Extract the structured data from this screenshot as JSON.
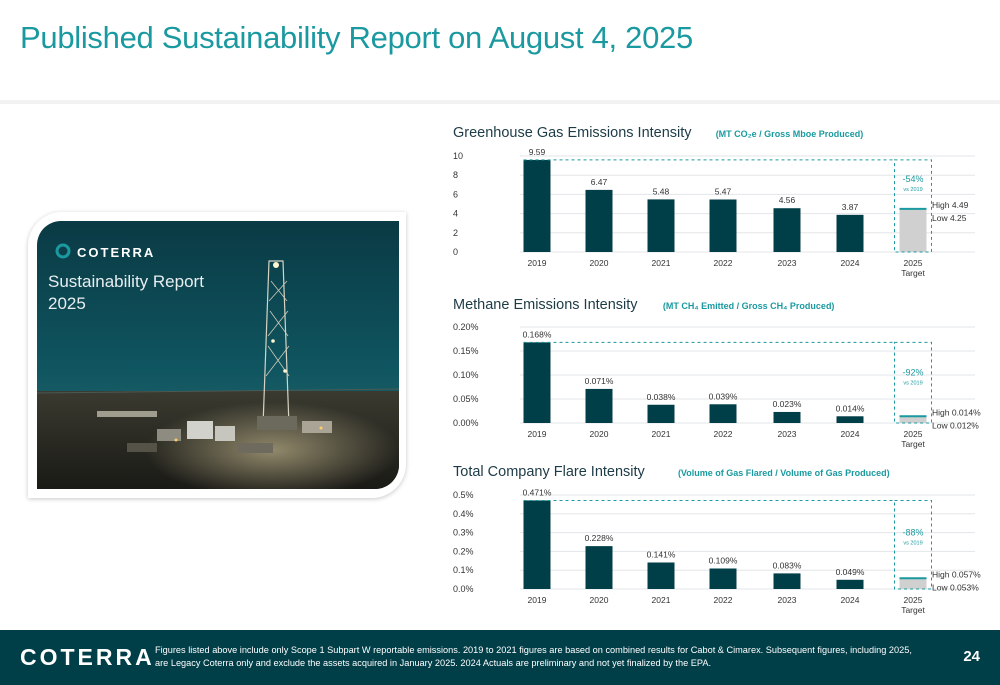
{
  "slide": {
    "title": "Published Sustainability Report on August 4, 2025",
    "page_number": "24",
    "footer_logo": "COTERRA",
    "footer_note": "Figures listed above include only Scope 1 Subpart W reportable emissions. 2019 to 2021 figures are based on combined results for Cabot & Cimarex. Subsequent figures, including 2025, are Legacy Coterra only and exclude the assets acquired in January 2025. 2024 Actuals are preliminary and not yet finalized by the EPA."
  },
  "report_cover": {
    "brand": "COTERRA",
    "title_line1": "Sustainability Report",
    "title_line2": "2025"
  },
  "colors": {
    "accent": "#1a9aa0",
    "bar": "#003e48",
    "target_bar": "#d0d0d0",
    "footer": "#003e48"
  },
  "chart_data": [
    {
      "type": "bar",
      "title": "Greenhouse Gas Emissions Intensity",
      "subtitle": "(MT CO₂e / Gross Mboe Produced)",
      "categories": [
        "2019",
        "2020",
        "2021",
        "2022",
        "2023",
        "2024",
        "2025"
      ],
      "category_sublabel": {
        "2025": "Target"
      },
      "values": [
        9.59,
        6.47,
        5.48,
        5.47,
        4.56,
        3.87,
        4.49
      ],
      "value_labels": [
        "9.59",
        "6.47",
        "5.48",
        "5.47",
        "4.56",
        "3.87",
        ""
      ],
      "ytick_labels": [
        "0",
        "2",
        "4",
        "6",
        "8",
        "10"
      ],
      "yticks": [
        0,
        2,
        4,
        6,
        8,
        10
      ],
      "ylim": [
        0,
        10
      ],
      "target": {
        "high": 4.49,
        "low": 4.25,
        "high_label": "High 4.49",
        "low_label": "Low 4.25",
        "reduction": "-54%",
        "reduction_note": "vs 2019"
      }
    },
    {
      "type": "bar",
      "title": "Methane Emissions Intensity",
      "subtitle": "(MT CH₄ Emitted / Gross CH₄ Produced)",
      "categories": [
        "2019",
        "2020",
        "2021",
        "2022",
        "2023",
        "2024",
        "2025"
      ],
      "category_sublabel": {
        "2025": "Target"
      },
      "values": [
        0.168,
        0.071,
        0.038,
        0.039,
        0.023,
        0.014,
        0.014
      ],
      "value_labels": [
        "0.168%",
        "0.071%",
        "0.038%",
        "0.039%",
        "0.023%",
        "0.014%",
        ""
      ],
      "ytick_labels": [
        "0.00%",
        "0.05%",
        "0.10%",
        "0.15%",
        "0.20%"
      ],
      "yticks": [
        0,
        0.05,
        0.1,
        0.15,
        0.2
      ],
      "ylim": [
        0,
        0.2
      ],
      "target": {
        "high": 0.014,
        "low": 0.012,
        "high_label": "High 0.014%",
        "low_label": "Low 0.012%",
        "reduction": "-92%",
        "reduction_note": "vs 2019"
      }
    },
    {
      "type": "bar",
      "title": "Total Company Flare Intensity",
      "subtitle": "(Volume of Gas Flared / Volume of Gas Produced)",
      "categories": [
        "2019",
        "2020",
        "2021",
        "2022",
        "2023",
        "2024",
        "2025"
      ],
      "category_sublabel": {
        "2025": "Target"
      },
      "values": [
        0.471,
        0.228,
        0.141,
        0.109,
        0.083,
        0.049,
        0.057
      ],
      "value_labels": [
        "0.471%",
        "0.228%",
        "0.141%",
        "0.109%",
        "0.083%",
        "0.049%",
        ""
      ],
      "ytick_labels": [
        "0.0%",
        "0.1%",
        "0.2%",
        "0.3%",
        "0.4%",
        "0.5%"
      ],
      "yticks": [
        0,
        0.1,
        0.2,
        0.3,
        0.4,
        0.5
      ],
      "ylim": [
        0,
        0.5
      ],
      "target": {
        "high": 0.057,
        "low": 0.053,
        "high_label": "High 0.057%",
        "low_label": "Low 0.053%",
        "reduction": "-88%",
        "reduction_note": "vs 2019"
      }
    }
  ]
}
